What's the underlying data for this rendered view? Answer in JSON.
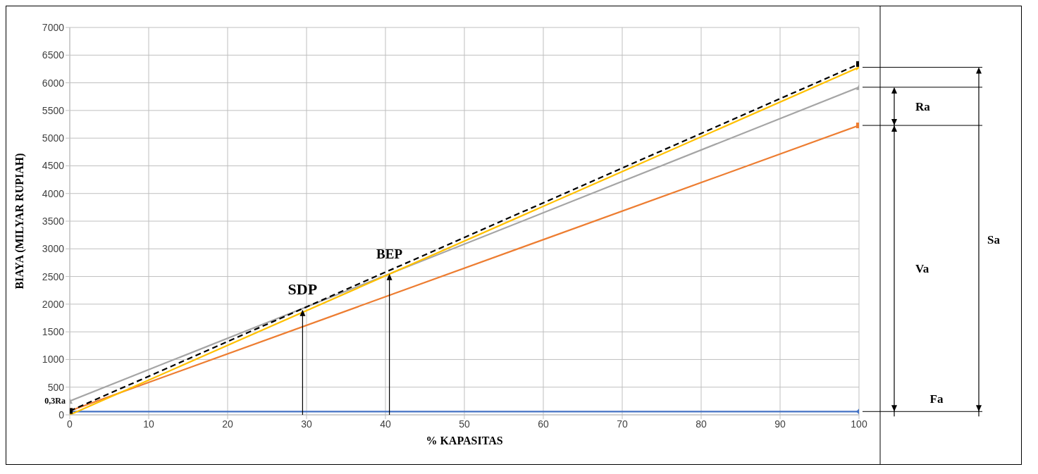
{
  "chart_data": {
    "type": "line",
    "xlabel": "% KAPASITAS",
    "ylabel": "BIAYA (MILYAR RUPIAH)",
    "x": [
      0,
      100
    ],
    "xlim": [
      0,
      100
    ],
    "xticks": [
      0,
      10,
      20,
      30,
      40,
      50,
      60,
      70,
      80,
      90,
      100
    ],
    "ylim": [
      0,
      7000
    ],
    "yticks": [
      0,
      500,
      1000,
      1500,
      2000,
      2500,
      3000,
      3500,
      4000,
      4500,
      5000,
      5500,
      6000,
      6500,
      7000
    ],
    "grid": true,
    "legend": false,
    "series": [
      {
        "color": "#4472c4",
        "values": [
          60,
          60
        ],
        "marker": "diamond",
        "line_style": "solid"
      },
      {
        "color": "#ed7d31",
        "values": [
          70,
          5230
        ],
        "marker": "square",
        "line_style": "solid"
      },
      {
        "color": "#a5a5a5",
        "values": [
          250,
          5920
        ],
        "marker": "triangle",
        "line_style": "solid"
      },
      {
        "color": "#ffc000",
        "values": [
          0,
          6280
        ],
        "marker": "cross",
        "line_style": "solid"
      },
      {
        "color": "#000000",
        "values": [
          70,
          6340
        ],
        "marker": "square",
        "line_style": "dashed"
      }
    ],
    "annotations": [
      {
        "text": "SDP",
        "x": 29.5,
        "y": 1900
      },
      {
        "text": "BEP",
        "x": 40.5,
        "y": 2550
      },
      {
        "text": "0,3Ra",
        "x": 0,
        "y": 250
      },
      "Ra",
      "Va",
      "Sa",
      "Fa"
    ]
  }
}
